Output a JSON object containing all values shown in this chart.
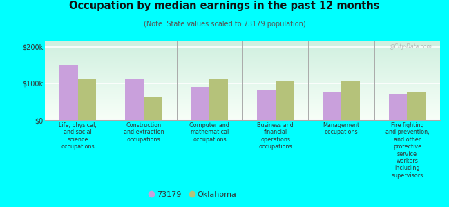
{
  "title": "Occupation by median earnings in the past 12 months",
  "subtitle": "(Note: State values scaled to 73179 population)",
  "categories": [
    "Life, physical,\nand social\nscience\noccupations",
    "Construction\nand extraction\noccupations",
    "Computer and\nmathematical\noccupations",
    "Business and\nfinancial\noperations\noccupations",
    "Management\noccupations",
    "Fire fighting\nand prevention,\nand other\nprotective\nservice\nworkers\nincluding\nsupervisors"
  ],
  "values_73179": [
    150000,
    112000,
    90000,
    82000,
    75000,
    72000
  ],
  "values_oklahoma": [
    112000,
    65000,
    112000,
    108000,
    108000,
    78000
  ],
  "color_73179": "#c9a0dc",
  "color_oklahoma": "#b5c27a",
  "ylim": [
    0,
    215000
  ],
  "ytick_labels": [
    "$0",
    "$100k",
    "$200k"
  ],
  "ytick_vals": [
    0,
    100000,
    200000
  ],
  "background_color": "#00ffff",
  "plot_bg_top": "#d0f0e0",
  "plot_bg_bottom": "#f8fff8",
  "bar_width": 0.28,
  "legend_label_73179": "73179",
  "legend_label_oklahoma": "Oklahoma",
  "watermark": "@City-Data.com"
}
